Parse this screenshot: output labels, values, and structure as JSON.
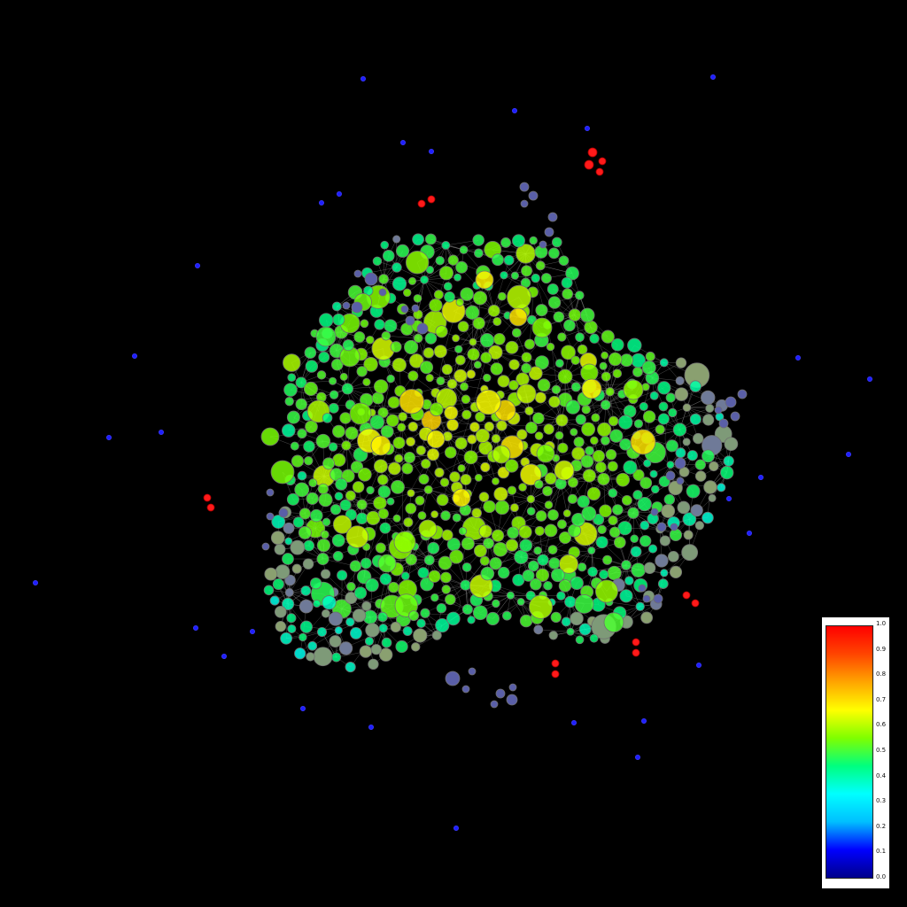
{
  "colors": {
    "background": "#000000",
    "colormap": [
      "#00008b",
      "#0000ff",
      "#00bfff",
      "#00ffff",
      "#00ff7f",
      "#7fff00",
      "#ffff00",
      "#ffa500",
      "#ff4500",
      "#ff0000"
    ]
  },
  "legend": {
    "ticks": [
      "1.0",
      "0.9",
      "0.8",
      "0.7",
      "0.6",
      "0.5",
      "0.4",
      "0.3",
      "0.2",
      "0.1",
      "0.0"
    ]
  }
}
